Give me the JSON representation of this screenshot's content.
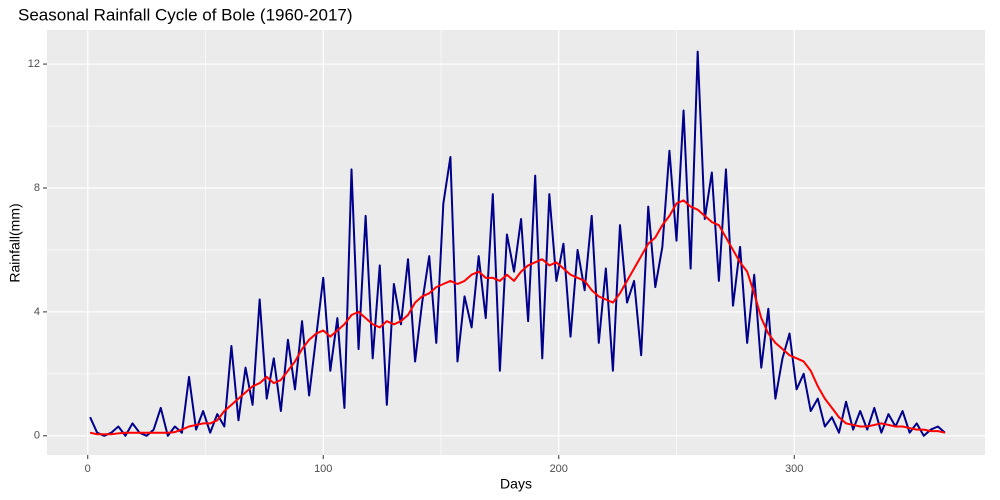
{
  "chart_data": {
    "type": "line",
    "title": "Seasonal Rainfall Cycle of Bole (1960-2017)",
    "x_label": "Days",
    "y_label": "Rainfall(mm)",
    "x": [
      1,
      4,
      7,
      10,
      13,
      16,
      19,
      22,
      25,
      28,
      31,
      34,
      37,
      40,
      43,
      46,
      49,
      52,
      55,
      58,
      61,
      64,
      67,
      70,
      73,
      76,
      79,
      82,
      85,
      88,
      91,
      94,
      97,
      100,
      103,
      106,
      109,
      112,
      115,
      118,
      121,
      124,
      127,
      130,
      133,
      136,
      139,
      142,
      145,
      148,
      151,
      154,
      157,
      160,
      163,
      166,
      169,
      172,
      175,
      178,
      181,
      184,
      187,
      190,
      193,
      196,
      199,
      202,
      205,
      208,
      211,
      214,
      217,
      220,
      223,
      226,
      229,
      232,
      235,
      238,
      241,
      244,
      247,
      250,
      253,
      256,
      259,
      262,
      265,
      268,
      271,
      274,
      277,
      280,
      283,
      286,
      289,
      292,
      295,
      298,
      301,
      304,
      307,
      310,
      313,
      316,
      319,
      322,
      325,
      328,
      331,
      334,
      337,
      340,
      343,
      346,
      349,
      352,
      355,
      358,
      361,
      364
    ],
    "series": [
      {
        "color": "#00008B",
        "values": [
          0.6,
          0.1,
          0.0,
          0.1,
          0.3,
          0.0,
          0.4,
          0.1,
          0.0,
          0.2,
          0.9,
          0.0,
          0.3,
          0.1,
          1.9,
          0.2,
          0.8,
          0.1,
          0.7,
          0.3,
          2.9,
          0.5,
          2.2,
          1.0,
          4.4,
          1.2,
          2.5,
          0.8,
          3.1,
          1.5,
          3.7,
          1.3,
          3.2,
          5.1,
          2.1,
          3.8,
          0.9,
          8.6,
          2.8,
          7.1,
          2.5,
          5.5,
          1.0,
          4.9,
          3.6,
          5.7,
          2.4,
          4.3,
          5.8,
          3.0,
          7.5,
          9.0,
          2.4,
          4.5,
          3.5,
          5.8,
          3.8,
          7.8,
          2.1,
          6.5,
          5.3,
          7.0,
          3.7,
          8.4,
          2.5,
          7.8,
          5.0,
          6.2,
          3.2,
          6.0,
          4.7,
          7.1,
          3.0,
          5.4,
          2.1,
          6.8,
          4.3,
          5.0,
          2.6,
          7.4,
          4.8,
          6.1,
          9.2,
          6.3,
          10.5,
          5.4,
          12.4,
          7.0,
          8.5,
          5.0,
          8.6,
          4.2,
          6.1,
          3.0,
          5.2,
          2.2,
          4.1,
          1.2,
          2.5,
          3.3,
          1.5,
          2.0,
          0.8,
          1.2,
          0.3,
          0.6,
          0.1,
          1.1,
          0.2,
          0.8,
          0.2,
          0.9,
          0.1,
          0.7,
          0.3,
          0.8,
          0.1,
          0.4,
          0.0,
          0.2,
          0.3,
          0.1
        ]
      },
      {
        "color": "#FF0000",
        "values": [
          0.1,
          0.05,
          0.05,
          0.05,
          0.08,
          0.1,
          0.1,
          0.1,
          0.1,
          0.1,
          0.1,
          0.1,
          0.12,
          0.2,
          0.3,
          0.35,
          0.4,
          0.4,
          0.5,
          0.8,
          1.0,
          1.2,
          1.4,
          1.6,
          1.7,
          1.9,
          1.7,
          1.8,
          2.1,
          2.4,
          2.8,
          3.1,
          3.3,
          3.4,
          3.2,
          3.4,
          3.6,
          3.9,
          4.0,
          3.8,
          3.6,
          3.5,
          3.7,
          3.6,
          3.7,
          3.9,
          4.3,
          4.5,
          4.6,
          4.8,
          4.9,
          5.0,
          4.9,
          5.0,
          5.2,
          5.3,
          5.1,
          5.1,
          5.0,
          5.2,
          5.0,
          5.3,
          5.5,
          5.6,
          5.7,
          5.5,
          5.6,
          5.4,
          5.2,
          5.1,
          5.0,
          4.7,
          4.5,
          4.4,
          4.3,
          4.6,
          5.0,
          5.4,
          5.8,
          6.2,
          6.4,
          6.8,
          7.1,
          7.5,
          7.6,
          7.4,
          7.3,
          7.1,
          6.9,
          6.8,
          6.4,
          6.0,
          5.6,
          5.3,
          4.6,
          3.8,
          3.3,
          3.0,
          2.8,
          2.6,
          2.5,
          2.4,
          2.1,
          1.6,
          1.2,
          0.9,
          0.6,
          0.4,
          0.35,
          0.3,
          0.3,
          0.35,
          0.4,
          0.35,
          0.3,
          0.3,
          0.25,
          0.2,
          0.2,
          0.15,
          0.15,
          0.1
        ]
      }
    ],
    "xlim": [
      -17.3,
      381
    ],
    "xticks": [
      0,
      100,
      200,
      300
    ],
    "ylim": [
      -0.62,
      13.1
    ],
    "yticks": [
      0,
      4,
      8,
      12
    ],
    "grid": true
  }
}
